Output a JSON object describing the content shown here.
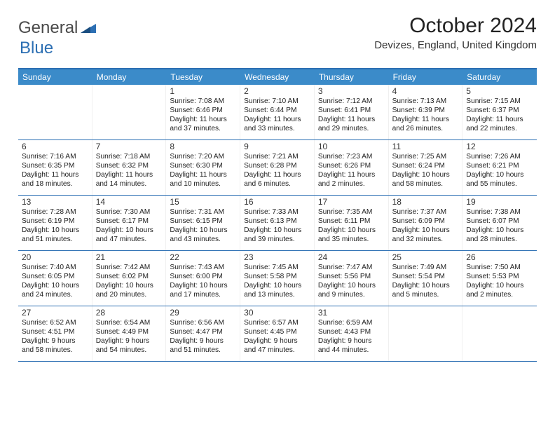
{
  "logo": {
    "word1": "General",
    "word2": "Blue"
  },
  "title": "October 2024",
  "location": "Devizes, England, United Kingdom",
  "colors": {
    "header_bg": "#3b8bc9",
    "border": "#2c6fb3",
    "text": "#222222",
    "logo_gray": "#4a4a4a",
    "logo_blue": "#2c6fb3",
    "background": "#ffffff"
  },
  "typography": {
    "title_fontsize": 30,
    "location_fontsize": 15,
    "dayheader_fontsize": 12,
    "daynum_fontsize": 12,
    "info_fontsize": 10.2
  },
  "day_names": [
    "Sunday",
    "Monday",
    "Tuesday",
    "Wednesday",
    "Thursday",
    "Friday",
    "Saturday"
  ],
  "weeks": [
    [
      null,
      null,
      {
        "n": "1",
        "sr": "7:08 AM",
        "ss": "6:46 PM",
        "dl": "11 hours and 37 minutes."
      },
      {
        "n": "2",
        "sr": "7:10 AM",
        "ss": "6:44 PM",
        "dl": "11 hours and 33 minutes."
      },
      {
        "n": "3",
        "sr": "7:12 AM",
        "ss": "6:41 PM",
        "dl": "11 hours and 29 minutes."
      },
      {
        "n": "4",
        "sr": "7:13 AM",
        "ss": "6:39 PM",
        "dl": "11 hours and 26 minutes."
      },
      {
        "n": "5",
        "sr": "7:15 AM",
        "ss": "6:37 PM",
        "dl": "11 hours and 22 minutes."
      }
    ],
    [
      {
        "n": "6",
        "sr": "7:16 AM",
        "ss": "6:35 PM",
        "dl": "11 hours and 18 minutes."
      },
      {
        "n": "7",
        "sr": "7:18 AM",
        "ss": "6:32 PM",
        "dl": "11 hours and 14 minutes."
      },
      {
        "n": "8",
        "sr": "7:20 AM",
        "ss": "6:30 PM",
        "dl": "11 hours and 10 minutes."
      },
      {
        "n": "9",
        "sr": "7:21 AM",
        "ss": "6:28 PM",
        "dl": "11 hours and 6 minutes."
      },
      {
        "n": "10",
        "sr": "7:23 AM",
        "ss": "6:26 PM",
        "dl": "11 hours and 2 minutes."
      },
      {
        "n": "11",
        "sr": "7:25 AM",
        "ss": "6:24 PM",
        "dl": "10 hours and 58 minutes."
      },
      {
        "n": "12",
        "sr": "7:26 AM",
        "ss": "6:21 PM",
        "dl": "10 hours and 55 minutes."
      }
    ],
    [
      {
        "n": "13",
        "sr": "7:28 AM",
        "ss": "6:19 PM",
        "dl": "10 hours and 51 minutes."
      },
      {
        "n": "14",
        "sr": "7:30 AM",
        "ss": "6:17 PM",
        "dl": "10 hours and 47 minutes."
      },
      {
        "n": "15",
        "sr": "7:31 AM",
        "ss": "6:15 PM",
        "dl": "10 hours and 43 minutes."
      },
      {
        "n": "16",
        "sr": "7:33 AM",
        "ss": "6:13 PM",
        "dl": "10 hours and 39 minutes."
      },
      {
        "n": "17",
        "sr": "7:35 AM",
        "ss": "6:11 PM",
        "dl": "10 hours and 35 minutes."
      },
      {
        "n": "18",
        "sr": "7:37 AM",
        "ss": "6:09 PM",
        "dl": "10 hours and 32 minutes."
      },
      {
        "n": "19",
        "sr": "7:38 AM",
        "ss": "6:07 PM",
        "dl": "10 hours and 28 minutes."
      }
    ],
    [
      {
        "n": "20",
        "sr": "7:40 AM",
        "ss": "6:05 PM",
        "dl": "10 hours and 24 minutes."
      },
      {
        "n": "21",
        "sr": "7:42 AM",
        "ss": "6:02 PM",
        "dl": "10 hours and 20 minutes."
      },
      {
        "n": "22",
        "sr": "7:43 AM",
        "ss": "6:00 PM",
        "dl": "10 hours and 17 minutes."
      },
      {
        "n": "23",
        "sr": "7:45 AM",
        "ss": "5:58 PM",
        "dl": "10 hours and 13 minutes."
      },
      {
        "n": "24",
        "sr": "7:47 AM",
        "ss": "5:56 PM",
        "dl": "10 hours and 9 minutes."
      },
      {
        "n": "25",
        "sr": "7:49 AM",
        "ss": "5:54 PM",
        "dl": "10 hours and 5 minutes."
      },
      {
        "n": "26",
        "sr": "7:50 AM",
        "ss": "5:53 PM",
        "dl": "10 hours and 2 minutes."
      }
    ],
    [
      {
        "n": "27",
        "sr": "6:52 AM",
        "ss": "4:51 PM",
        "dl": "9 hours and 58 minutes."
      },
      {
        "n": "28",
        "sr": "6:54 AM",
        "ss": "4:49 PM",
        "dl": "9 hours and 54 minutes."
      },
      {
        "n": "29",
        "sr": "6:56 AM",
        "ss": "4:47 PM",
        "dl": "9 hours and 51 minutes."
      },
      {
        "n": "30",
        "sr": "6:57 AM",
        "ss": "4:45 PM",
        "dl": "9 hours and 47 minutes."
      },
      {
        "n": "31",
        "sr": "6:59 AM",
        "ss": "4:43 PM",
        "dl": "9 hours and 44 minutes."
      },
      null,
      null
    ]
  ],
  "labels": {
    "sunrise": "Sunrise:",
    "sunset": "Sunset:",
    "daylight": "Daylight:"
  }
}
